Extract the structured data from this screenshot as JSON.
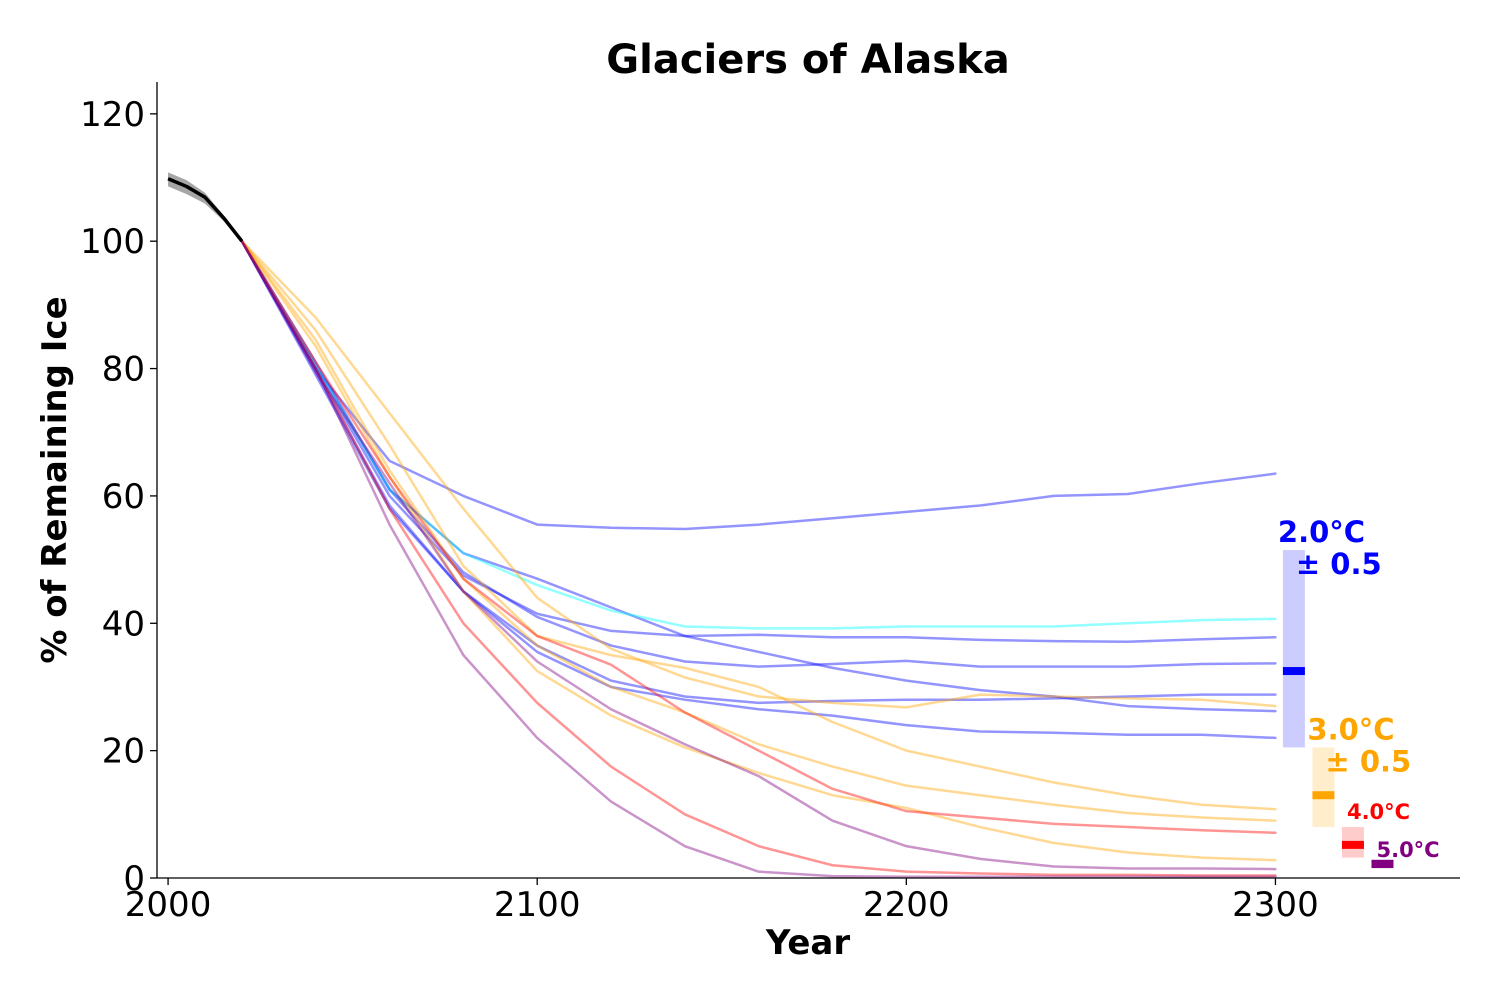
{
  "chart_data": {
    "type": "line",
    "title": "Glaciers of Alaska",
    "xlabel": "Year",
    "ylabel": "% of Remaining Ice",
    "xlim": [
      1997,
      2350
    ],
    "ylim": [
      0,
      125
    ],
    "xticks": [
      2000,
      2100,
      2200,
      2300
    ],
    "yticks": [
      0,
      20,
      40,
      60,
      80,
      100,
      120
    ],
    "grid": false,
    "colors": {
      "historical": "#000000",
      "2.0C": "#0000ff",
      "2.0C_alt": "#00ffff",
      "3.0C": "#ffa500",
      "4.0C": "#ff0000",
      "5.0C": "#800080"
    },
    "historical": {
      "x": [
        2000,
        2005,
        2010,
        2015,
        2020
      ],
      "y": [
        109.8,
        108.6,
        106.9,
        103.7,
        100
      ],
      "band_upper": [
        110.8,
        109.6,
        107.6,
        104.1,
        100
      ],
      "band_lower": [
        108.6,
        107.4,
        105.9,
        103.2,
        100
      ]
    },
    "x": [
      2020,
      2040,
      2060,
      2080,
      2100,
      2120,
      2140,
      2160,
      2180,
      2200,
      2220,
      2240,
      2260,
      2280,
      2300
    ],
    "series": [
      {
        "group": "2.0C",
        "color": "#0000ff",
        "values": [
          100,
          80.0,
          65.5,
          60.0,
          55.5,
          55.0,
          54.8,
          55.5,
          56.5,
          57.5,
          58.5,
          60.0,
          60.3,
          62.0,
          63.5
        ]
      },
      {
        "group": "2.0C",
        "color": "#0000ff",
        "values": [
          100,
          81.0,
          61.0,
          51.0,
          47.0,
          42.5,
          38.0,
          35.5,
          33.0,
          31.0,
          29.5,
          28.5,
          27.0,
          26.5,
          26.2
        ]
      },
      {
        "group": "2.0C",
        "color": "#0000ff",
        "values": [
          100,
          80.0,
          60.0,
          47.5,
          41.5,
          38.8,
          38.0,
          38.2,
          37.8,
          37.8,
          37.4,
          37.2,
          37.1,
          37.5,
          37.8
        ]
      },
      {
        "group": "2.0C",
        "color": "#0000ff",
        "values": [
          100,
          80.5,
          61.0,
          48.0,
          41.0,
          36.5,
          34.0,
          33.2,
          33.6,
          34.1,
          33.2,
          33.2,
          33.2,
          33.6,
          33.7
        ]
      },
      {
        "group": "2.0C",
        "color": "#0000ff",
        "values": [
          100,
          79.0,
          58.0,
          45.0,
          36.5,
          31.0,
          28.5,
          27.5,
          27.8,
          28.0,
          28.0,
          28.2,
          28.5,
          28.8,
          28.8
        ]
      },
      {
        "group": "2.0C",
        "color": "#0000ff",
        "values": [
          100,
          79.5,
          58.5,
          45.0,
          35.5,
          30.0,
          28.0,
          26.5,
          25.5,
          24.0,
          23.0,
          22.8,
          22.5,
          22.5,
          22.0
        ]
      },
      {
        "group": "2.0C_alt",
        "color": "#00ffff",
        "values": [
          100,
          80.5,
          61.0,
          51.0,
          46.0,
          42.0,
          39.5,
          39.2,
          39.2,
          39.5,
          39.5,
          39.5,
          40.0,
          40.5,
          40.7
        ]
      },
      {
        "group": "3.0C",
        "color": "#ffa500",
        "values": [
          100,
          88.0,
          73.0,
          58.0,
          44.0,
          36.0,
          31.5,
          28.5,
          27.5,
          26.8,
          28.8,
          28.5,
          28.2,
          28.0,
          27.0
        ]
      },
      {
        "group": "3.0C",
        "color": "#ffa500",
        "values": [
          100,
          86.0,
          68.0,
          49.0,
          38.0,
          35.0,
          33.0,
          30.0,
          24.5,
          20.0,
          17.5,
          15.0,
          13.0,
          11.5,
          10.8
        ]
      },
      {
        "group": "3.0C",
        "color": "#ffa500",
        "values": [
          100,
          84.5,
          64.0,
          47.0,
          36.5,
          30.0,
          26.0,
          21.0,
          17.5,
          14.5,
          13.0,
          11.5,
          10.2,
          9.5,
          9.0
        ]
      },
      {
        "group": "3.0C",
        "color": "#ffa500",
        "values": [
          100,
          83.5,
          63.0,
          45.0,
          32.5,
          25.5,
          20.5,
          16.5,
          13.0,
          11.0,
          8.0,
          5.5,
          4.0,
          3.2,
          2.8
        ]
      },
      {
        "group": "4.0C",
        "color": "#ff0000",
        "values": [
          100,
          81.0,
          63.0,
          47.0,
          38.0,
          33.5,
          26.0,
          20.0,
          14.0,
          10.5,
          9.5,
          8.5,
          8.0,
          7.5,
          7.1
        ]
      },
      {
        "group": "4.0C",
        "color": "#ff0000",
        "values": [
          100,
          80.0,
          58.0,
          40.0,
          27.5,
          17.5,
          10.0,
          5.0,
          2.0,
          1.0,
          0.7,
          0.5,
          0.5,
          0.4,
          0.4
        ]
      },
      {
        "group": "5.0C",
        "color": "#800080",
        "values": [
          100,
          79.5,
          62.0,
          45.0,
          34.0,
          26.5,
          21.0,
          16.0,
          9.0,
          5.0,
          3.0,
          1.8,
          1.5,
          1.5,
          1.4
        ]
      },
      {
        "group": "5.0C",
        "color": "#800080",
        "values": [
          100,
          80.0,
          55.5,
          35.0,
          22.0,
          12.0,
          5.0,
          1.0,
          0.3,
          0.2,
          0.2,
          0.2,
          0.2,
          0.2,
          0.2
        ]
      }
    ],
    "scenarios": [
      {
        "name": "2.0°C",
        "pm": "± 0.5",
        "color": "#0000ff",
        "x": 2305,
        "median": 32.5,
        "low": 20.5,
        "high": 51.5,
        "big": true
      },
      {
        "name": "3.0°C",
        "pm": "± 0.5",
        "color": "#ffa500",
        "x": 2313,
        "median": 13.0,
        "low": 8.0,
        "high": 20.5,
        "big": true
      },
      {
        "name": "4.0°C",
        "pm": "",
        "color": "#ff0000",
        "x": 2321,
        "median": 5.2,
        "low": 3.2,
        "high": 8.0,
        "big": false
      },
      {
        "name": "5.0°C",
        "pm": "",
        "color": "#800080",
        "x": 2329,
        "median": 2.2,
        "low": 1.5,
        "high": 3.0,
        "big": false
      }
    ]
  }
}
